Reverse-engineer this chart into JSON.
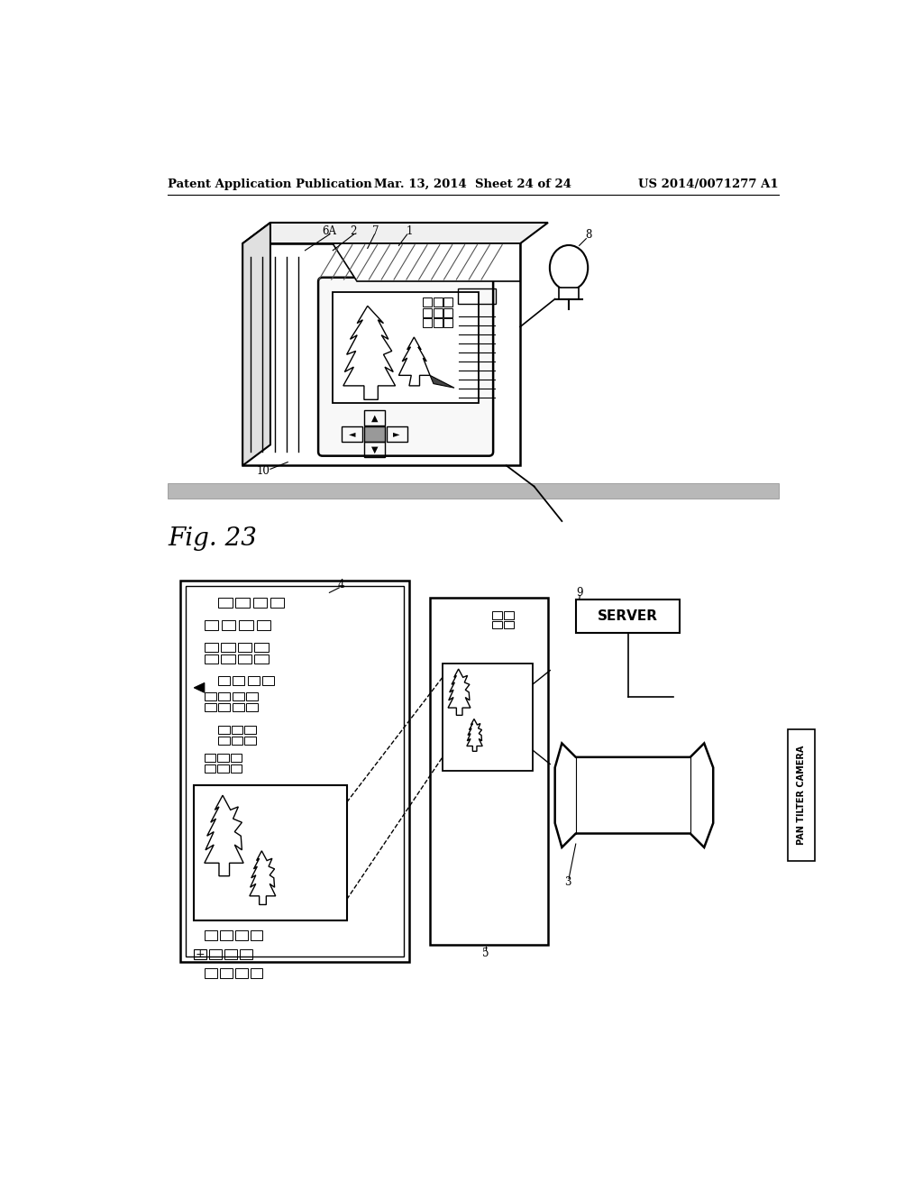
{
  "bg_color": "#ffffff",
  "title_left": "Patent Application Publication",
  "title_center": "Mar. 13, 2014  Sheet 24 of 24",
  "title_right": "US 2014/0071277 A1",
  "fig_label": "Fig. 23"
}
